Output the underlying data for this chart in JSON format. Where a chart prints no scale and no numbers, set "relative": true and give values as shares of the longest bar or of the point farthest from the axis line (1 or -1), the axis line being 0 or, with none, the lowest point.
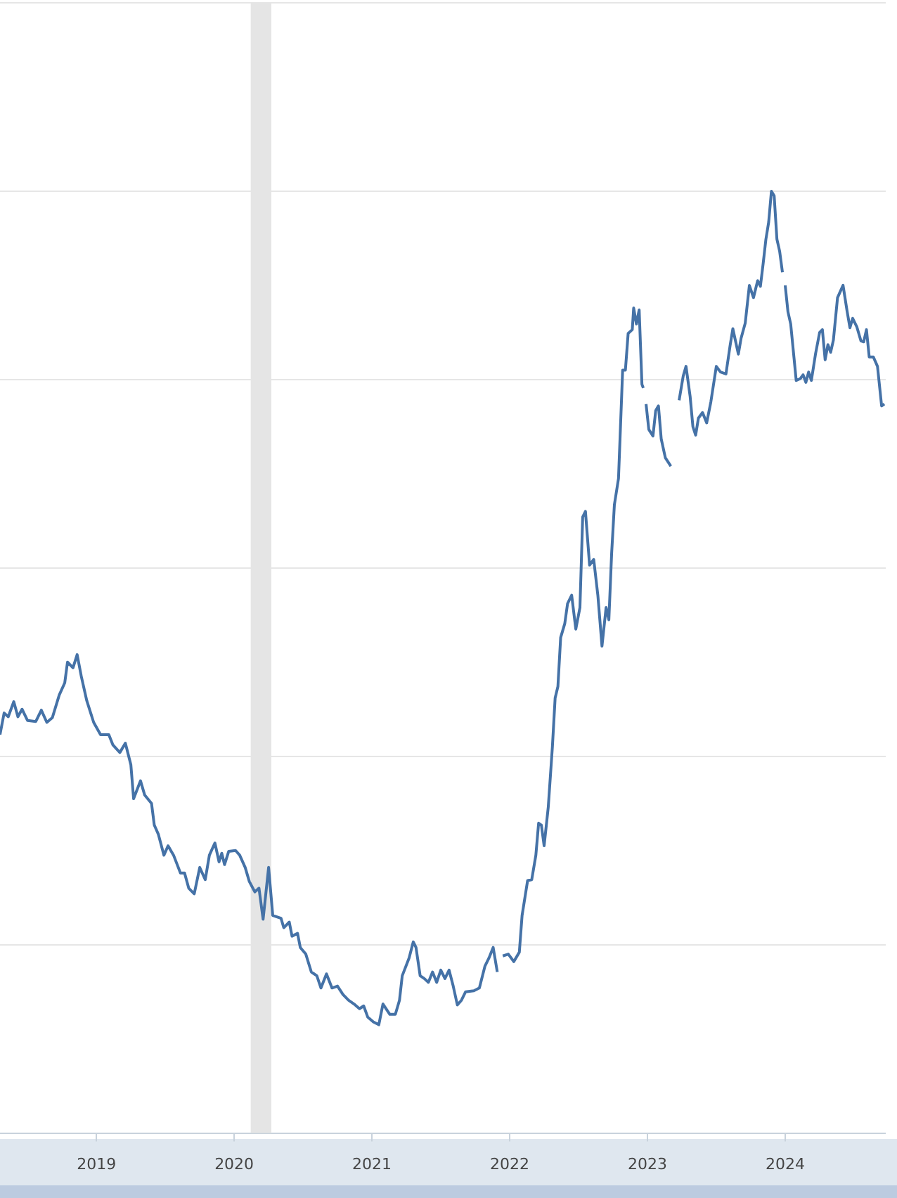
{
  "chart_data": {
    "type": "line",
    "relative": true,
    "color": "#4572a7",
    "grid": "y",
    "legend": false,
    "marker": "none",
    "line_style": "solid",
    "xlim": [
      2018.3,
      2024.73
    ],
    "xticks": [
      2019,
      2020,
      2021,
      2022,
      2023,
      2024
    ],
    "bands": [
      {
        "axis": "x",
        "from": 2020.12,
        "to": 2020.27,
        "color": "#e5e5e5"
      }
    ],
    "x": [
      2018.3,
      2018.33,
      2018.36,
      2018.4,
      2018.43,
      2018.46,
      2018.5,
      2018.56,
      2018.6,
      2018.64,
      2018.68,
      2018.73,
      2018.77,
      2018.79,
      2018.83,
      2018.86,
      2018.89,
      2018.93,
      2018.98,
      2019.03,
      2019.09,
      2019.12,
      2019.17,
      2019.21,
      2019.25,
      2019.27,
      2019.32,
      2019.35,
      2019.4,
      2019.42,
      2019.45,
      2019.49,
      2019.52,
      2019.56,
      2019.61,
      2019.64,
      2019.67,
      2019.71,
      2019.75,
      2019.79,
      2019.82,
      2019.86,
      2019.89,
      2019.91,
      2019.93,
      2019.96,
      2020.01,
      2020.04,
      2020.08,
      2020.11,
      2020.15,
      2020.18,
      2020.21,
      2020.25,
      2020.28,
      2020.34,
      2020.36,
      2020.4,
      2020.42,
      2020.46,
      2020.48,
      2020.52,
      2020.56,
      2020.6,
      2020.63,
      2020.67,
      2020.71,
      2020.75,
      2020.79,
      2020.83,
      2020.87,
      2020.91,
      2020.94,
      2020.97,
      2021.01,
      2021.05,
      2021.08,
      2021.13,
      2021.17,
      2021.2,
      2021.22,
      2021.27,
      2021.3,
      2021.32,
      2021.35,
      2021.38,
      2021.41,
      2021.44,
      2021.47,
      2021.5,
      2021.53,
      2021.56,
      2021.59,
      2021.62,
      2021.65,
      2021.68,
      2021.74,
      2021.78,
      2021.82,
      2021.85,
      2021.88,
      2021.91,
      2021.93,
      2021.95,
      2021.99,
      2022.03,
      2022.07,
      2022.09,
      2022.13,
      2022.16,
      2022.19,
      2022.21,
      2022.23,
      2022.25,
      2022.28,
      2022.31,
      2022.33,
      2022.35,
      2022.37,
      2022.4,
      2022.42,
      2022.45,
      2022.48,
      2022.51,
      2022.53,
      2022.55,
      2022.58,
      2022.61,
      2022.64,
      2022.67,
      2022.7,
      2022.72,
      2022.74,
      2022.76,
      2022.79,
      2022.82,
      2022.84,
      2022.86,
      2022.89,
      2022.9,
      2022.92,
      2022.94,
      2022.96,
      2022.97,
      2022.98,
      2022.99,
      2023.01,
      2023.04,
      2023.06,
      2023.08,
      2023.1,
      2023.13,
      2023.17,
      2023.19,
      2023.23,
      2023.26,
      2023.28,
      2023.31,
      2023.33,
      2023.35,
      2023.37,
      2023.4,
      2023.43,
      2023.46,
      2023.5,
      2023.53,
      2023.57,
      2023.6,
      2023.62,
      2023.66,
      2023.68,
      2023.71,
      2023.74,
      2023.77,
      2023.8,
      2023.82,
      2023.84,
      2023.86,
      2023.88,
      2023.9,
      2023.92,
      2023.94,
      2023.96,
      2023.98,
      2023.99,
      2024.0,
      2024.02,
      2024.04,
      2024.08,
      2024.11,
      2024.13,
      2024.15,
      2024.17,
      2024.19,
      2024.22,
      2024.25,
      2024.27,
      2024.29,
      2024.31,
      2024.33,
      2024.35,
      2024.38,
      2024.42,
      2024.45,
      2024.47,
      2024.49,
      2024.52,
      2024.55,
      2024.57,
      2024.59,
      2024.61,
      2024.64,
      2024.67,
      2024.7,
      2024.72
    ],
    "values": [
      0.423,
      0.446,
      0.442,
      0.458,
      0.442,
      0.45,
      0.438,
      0.437,
      0.449,
      0.436,
      0.441,
      0.465,
      0.478,
      0.5,
      0.494,
      0.508,
      0.485,
      0.459,
      0.436,
      0.423,
      0.423,
      0.412,
      0.404,
      0.414,
      0.391,
      0.355,
      0.374,
      0.359,
      0.35,
      0.327,
      0.317,
      0.295,
      0.305,
      0.295,
      0.276,
      0.276,
      0.26,
      0.254,
      0.282,
      0.269,
      0.295,
      0.308,
      0.288,
      0.297,
      0.285,
      0.299,
      0.3,
      0.295,
      0.282,
      0.267,
      0.256,
      0.26,
      0.227,
      0.282,
      0.231,
      0.228,
      0.218,
      0.224,
      0.209,
      0.212,
      0.197,
      0.19,
      0.171,
      0.167,
      0.154,
      0.169,
      0.154,
      0.156,
      0.147,
      0.141,
      0.137,
      0.132,
      0.135,
      0.123,
      0.118,
      0.115,
      0.137,
      0.126,
      0.126,
      0.141,
      0.167,
      0.186,
      0.203,
      0.197,
      0.167,
      0.164,
      0.16,
      0.171,
      0.16,
      0.173,
      0.164,
      0.173,
      0.156,
      0.136,
      0.141,
      0.15,
      0.151,
      0.154,
      0.177,
      0.186,
      0.197,
      0.171,
      null,
      0.188,
      0.19,
      0.182,
      0.192,
      0.231,
      0.268,
      0.269,
      0.295,
      0.329,
      0.327,
      0.305,
      0.346,
      0.41,
      0.462,
      0.474,
      0.526,
      0.541,
      0.562,
      0.571,
      0.535,
      0.558,
      0.654,
      0.66,
      0.603,
      0.609,
      0.571,
      0.517,
      0.558,
      0.545,
      0.615,
      0.667,
      0.695,
      0.81,
      0.81,
      0.849,
      0.853,
      0.876,
      0.859,
      0.874,
      0.795,
      0.791,
      null,
      0.774,
      0.747,
      0.74,
      0.767,
      0.772,
      0.737,
      0.717,
      0.708,
      null,
      0.778,
      0.804,
      0.814,
      0.782,
      0.75,
      0.741,
      0.759,
      0.765,
      0.754,
      0.776,
      0.814,
      0.808,
      0.806,
      0.836,
      0.854,
      0.827,
      0.844,
      0.86,
      0.9,
      0.887,
      0.905,
      0.899,
      0.923,
      0.949,
      0.967,
      1,
      0.995,
      0.949,
      0.936,
      0.914,
      null,
      0.9,
      0.872,
      0.859,
      0.799,
      0.801,
      0.805,
      0.797,
      0.808,
      0.799,
      0.827,
      0.85,
      0.853,
      0.821,
      0.837,
      0.829,
      0.842,
      0.887,
      0.9,
      0.872,
      0.855,
      0.865,
      0.856,
      0.841,
      0.84,
      0.853,
      0.824,
      0.824,
      0.814,
      0.772,
      0.774
    ]
  }
}
